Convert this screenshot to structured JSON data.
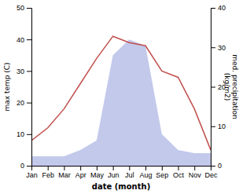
{
  "chart_data": {
    "type": "line",
    "categories": [
      "Jan",
      "Feb",
      "Mar",
      "Apr",
      "May",
      "Jun",
      "Jul",
      "Aug",
      "Sep",
      "Oct",
      "Nov",
      "Dec"
    ],
    "series": [
      {
        "type": "area",
        "color": "#b8bfe8",
        "values": [
          3,
          3,
          3,
          5,
          8,
          35,
          40,
          38,
          10,
          5,
          4,
          4
        ]
      },
      {
        "type": "line",
        "color": "#c0504d",
        "values": [
          8,
          12,
          18,
          26,
          34,
          41,
          39,
          38,
          30,
          28,
          18,
          5
        ]
      }
    ],
    "x_label": "date (month)",
    "y_label": "max temp (C)",
    "y2_label": "med. precipitation\n(kg/m2)",
    "ylim": [
      0,
      50
    ],
    "yticks": [
      0,
      10,
      20,
      30,
      40,
      50
    ],
    "y2lim": [
      0,
      40
    ],
    "y2ticks": [
      0,
      10,
      20,
      30,
      40
    ]
  }
}
